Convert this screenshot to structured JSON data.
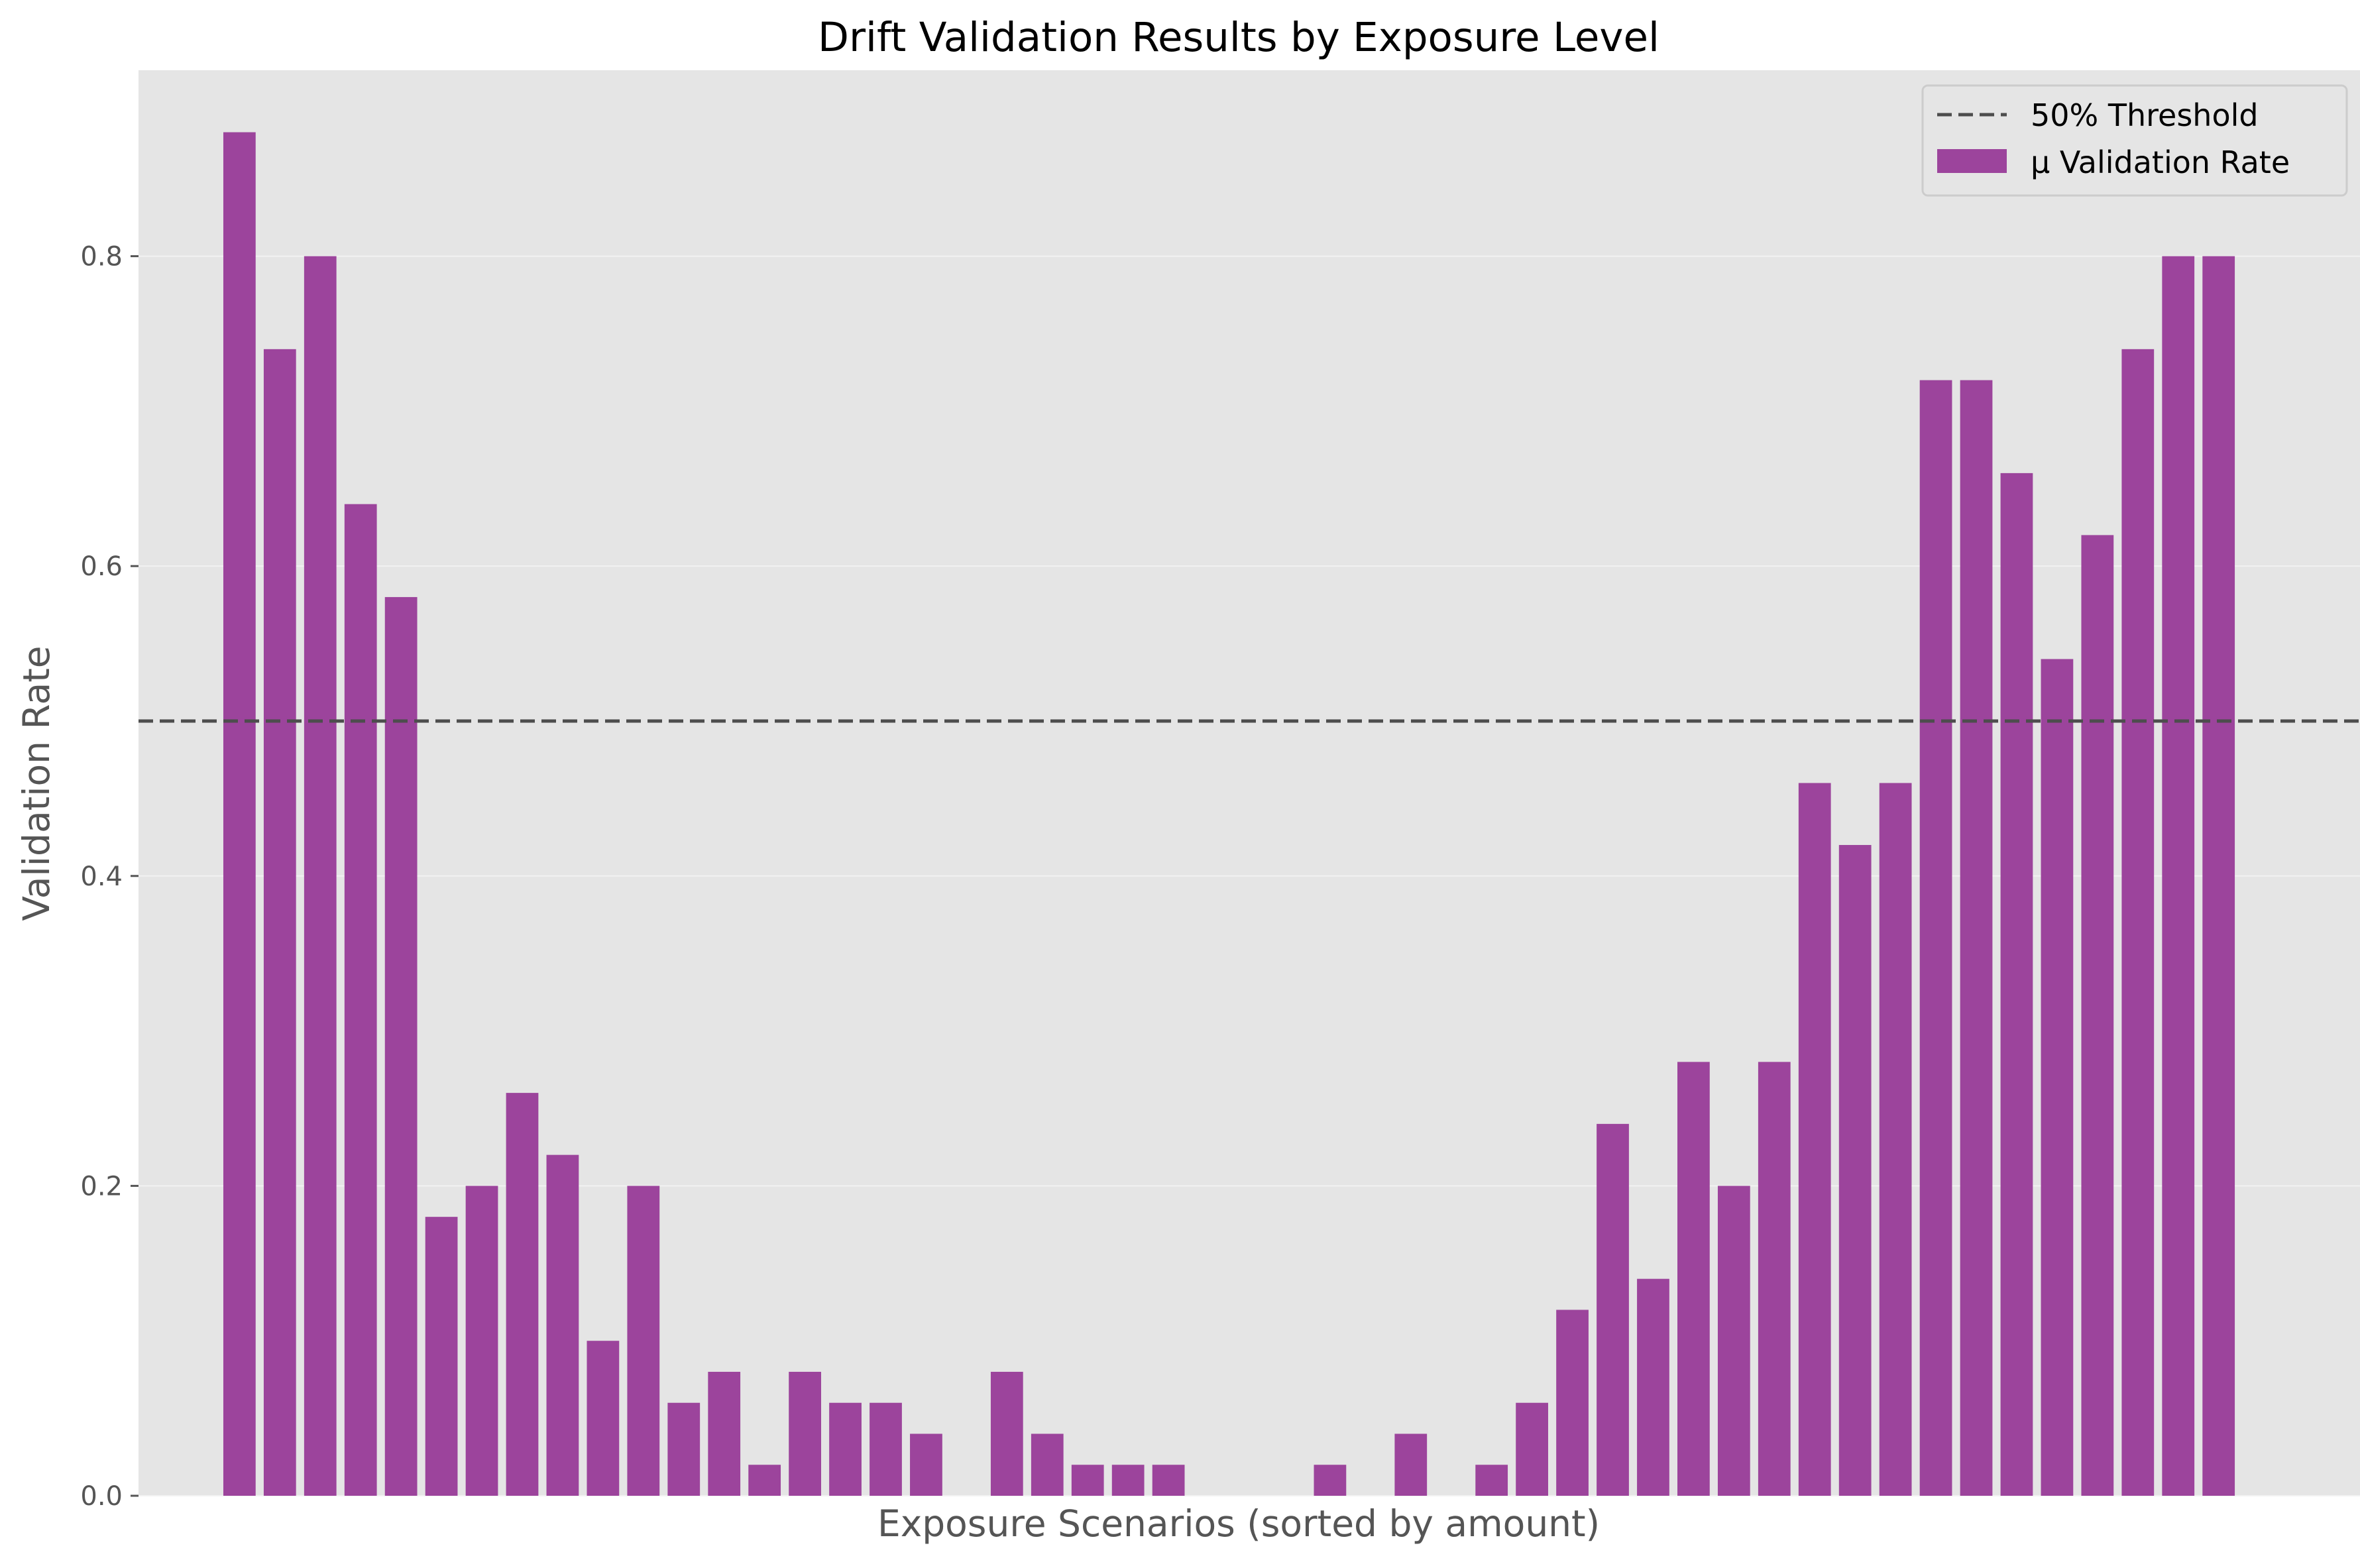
{
  "chart_data": {
    "type": "bar",
    "title": "Drift Validation Results by Exposure Level",
    "xlabel": "Exposure Scenarios (sorted by amount)",
    "ylabel": "Validation Rate",
    "ylim": [
      0,
      0.92
    ],
    "yticks": [
      "0.0",
      "0.2",
      "0.4",
      "0.6",
      "0.8"
    ],
    "xlim": [
      -2.5,
      52.5
    ],
    "grid": true,
    "legend_placement": "top-right",
    "series": [
      {
        "name": "μ Validation Rate",
        "color": "#9c449c",
        "values": [
          0.88,
          0.74,
          0.8,
          0.64,
          0.58,
          0.18,
          0.2,
          0.26,
          0.22,
          0.1,
          0.2,
          0.06,
          0.08,
          0.02,
          0.08,
          0.06,
          0.06,
          0.04,
          0.0,
          0.08,
          0.04,
          0.02,
          0.02,
          0.02,
          0.0,
          0.0,
          0.0,
          0.02,
          0.0,
          0.04,
          0.0,
          0.02,
          0.06,
          0.12,
          0.24,
          0.14,
          0.28,
          0.2,
          0.28,
          0.46,
          0.42,
          0.46,
          0.72,
          0.72,
          0.66,
          0.54,
          0.62,
          0.74,
          0.8,
          0.8
        ]
      }
    ],
    "reference_lines": [
      {
        "name": "50% Threshold",
        "y": 0.5,
        "style": "dashed",
        "color": "#4d4d4d"
      }
    ]
  },
  "colors": {
    "plot_background": "#e5e5e5",
    "grid": "#f2f2f2",
    "tick_text": "#555555",
    "axis_label": "#555555",
    "title": "#000000"
  }
}
